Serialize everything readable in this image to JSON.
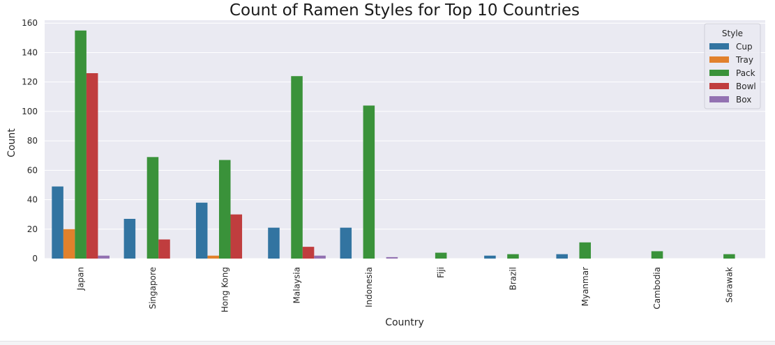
{
  "chart_data": {
    "type": "bar",
    "title": "Count of Ramen Styles for Top 10 Countries",
    "xlabel": "Country",
    "ylabel": "Count",
    "ylim": [
      0,
      162
    ],
    "yticks": [
      0,
      20,
      40,
      60,
      80,
      100,
      120,
      140,
      160
    ],
    "grid": true,
    "legend_position": "top-right",
    "legend_title": "Style",
    "categories": [
      "Japan",
      "Singapore",
      "Hong Kong",
      "Malaysia",
      "Indonesia",
      "Fiji",
      "Brazil",
      "Myanmar",
      "Cambodia",
      "Sarawak"
    ],
    "series": [
      {
        "name": "Cup",
        "color": "#3274a1",
        "values": [
          49,
          27,
          38,
          21,
          21,
          0,
          2,
          3,
          0,
          0
        ]
      },
      {
        "name": "Tray",
        "color": "#e1812c",
        "values": [
          20,
          0,
          2,
          0,
          0,
          0,
          0,
          0,
          0,
          0
        ]
      },
      {
        "name": "Pack",
        "color": "#3a923a",
        "values": [
          155,
          69,
          67,
          124,
          104,
          4,
          3,
          11,
          5,
          3
        ]
      },
      {
        "name": "Bowl",
        "color": "#c03d3e",
        "values": [
          126,
          13,
          30,
          8,
          0,
          0,
          0,
          0,
          0,
          0
        ]
      },
      {
        "name": "Box",
        "color": "#9372b2",
        "values": [
          2,
          0,
          0,
          2,
          1,
          0,
          0,
          0,
          0,
          0
        ]
      }
    ]
  }
}
